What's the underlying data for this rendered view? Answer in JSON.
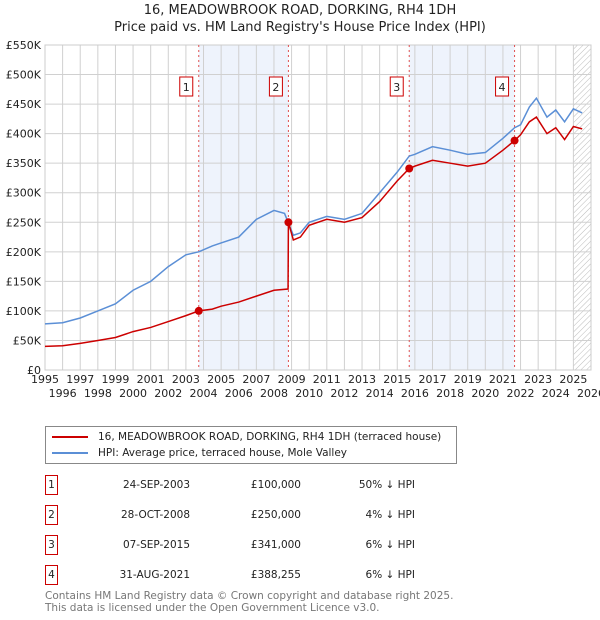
{
  "chart_data": {
    "type": "line",
    "title": "16, MEADOWBROOK ROAD, DORKING, RH4 1DH",
    "subtitle": "Price paid vs. HM Land Registry's House Price Index (HPI)",
    "xlim": [
      1995,
      2026
    ],
    "ylim": [
      0,
      550000
    ],
    "x_ticks": [
      "1995",
      "1996",
      "1997",
      "1998",
      "1999",
      "2000",
      "2001",
      "2002",
      "2003",
      "2004",
      "2005",
      "2006",
      "2007",
      "2008",
      "2009",
      "2010",
      "2011",
      "2012",
      "2013",
      "2014",
      "2015",
      "2016",
      "2017",
      "2018",
      "2019",
      "2020",
      "2021",
      "2022",
      "2023",
      "2024",
      "2025",
      "2026"
    ],
    "y_ticks": [
      {
        "v": 0,
        "l": "£0"
      },
      {
        "v": 50000,
        "l": "£50K"
      },
      {
        "v": 100000,
        "l": "£100K"
      },
      {
        "v": 150000,
        "l": "£150K"
      },
      {
        "v": 200000,
        "l": "£200K"
      },
      {
        "v": 250000,
        "l": "£250K"
      },
      {
        "v": 300000,
        "l": "£300K"
      },
      {
        "v": 350000,
        "l": "£350K"
      },
      {
        "v": 400000,
        "l": "£400K"
      },
      {
        "v": 450000,
        "l": "£450K"
      },
      {
        "v": 500000,
        "l": "£500K"
      },
      {
        "v": 550000,
        "l": "£550K"
      }
    ],
    "grid": true,
    "series": [
      {
        "name": "16, MEADOWBROOK ROAD, DORKING, RH4 1DH (terraced house)",
        "color": "#cc0000",
        "x": [
          1995,
          1996,
          1997,
          1998,
          1999,
          2000,
          2001,
          2002,
          2003,
          2003.73,
          2004.5,
          2005,
          2006,
          2007,
          2008,
          2008.8,
          2008.82,
          2009.1,
          2009.5,
          2010,
          2011,
          2012,
          2013,
          2014,
          2015,
          2015.68,
          2016,
          2017,
          2018,
          2019,
          2020,
          2021,
          2021.66,
          2022,
          2022.5,
          2022.9,
          2023.5,
          2024,
          2024.5,
          2025,
          2025.5
        ],
        "y": [
          40000,
          41000,
          45000,
          50000,
          55000,
          65000,
          72000,
          82000,
          92000,
          100000,
          103000,
          108000,
          115000,
          125000,
          135000,
          137000,
          250000,
          220000,
          225000,
          245000,
          255000,
          250000,
          258000,
          285000,
          320000,
          341000,
          345000,
          355000,
          350000,
          345000,
          350000,
          372000,
          388255,
          398000,
          420000,
          428000,
          400000,
          410000,
          390000,
          412000,
          408000
        ]
      },
      {
        "name": "HPI: Average price, terraced house, Mole Valley",
        "color": "#5b8fd6",
        "x": [
          1995,
          1996,
          1997,
          1998,
          1999,
          2000,
          2001,
          2002,
          2003,
          2003.73,
          2004.5,
          2005,
          2006,
          2007,
          2008,
          2008.6,
          2009.1,
          2009.5,
          2010,
          2011,
          2012,
          2013,
          2014,
          2015,
          2015.68,
          2016,
          2017,
          2018,
          2019,
          2020,
          2021,
          2021.66,
          2022,
          2022.5,
          2022.9,
          2023.5,
          2024,
          2024.5,
          2025,
          2025.5
        ],
        "y": [
          78000,
          80000,
          88000,
          100000,
          112000,
          135000,
          150000,
          175000,
          195000,
          200000,
          210000,
          215000,
          225000,
          255000,
          270000,
          265000,
          228000,
          232000,
          250000,
          260000,
          255000,
          265000,
          300000,
          335000,
          362000,
          365000,
          378000,
          372000,
          365000,
          368000,
          392000,
          410000,
          415000,
          445000,
          460000,
          428000,
          440000,
          420000,
          442000,
          435000
        ]
      }
    ],
    "sales": [
      {
        "n": "1",
        "x": 2003.73,
        "y": 100000
      },
      {
        "n": "2",
        "x": 2008.82,
        "y": 250000
      },
      {
        "n": "3",
        "x": 2015.68,
        "y": 341000
      },
      {
        "n": "4",
        "x": 2021.66,
        "y": 388255
      }
    ],
    "shaded_ranges": [
      [
        2003.73,
        2008.82
      ],
      [
        2015.68,
        2021.66
      ]
    ],
    "forecast_hatch_from": 2025.0
  },
  "legend": {
    "red": "16, MEADOWBROOK ROAD, DORKING, RH4 1DH (terraced house)",
    "blue": "HPI: Average price, terraced house, Mole Valley"
  },
  "table": [
    {
      "n": "1",
      "date": "24-SEP-2003",
      "price": "£100,000",
      "hpi": "50% ↓ HPI"
    },
    {
      "n": "2",
      "date": "28-OCT-2008",
      "price": "£250,000",
      "hpi": "4% ↓ HPI"
    },
    {
      "n": "3",
      "date": "07-SEP-2015",
      "price": "£341,000",
      "hpi": "6% ↓ HPI"
    },
    {
      "n": "4",
      "date": "31-AUG-2021",
      "price": "£388,255",
      "hpi": "6% ↓ HPI"
    }
  ],
  "footer": {
    "line1": "Contains HM Land Registry data © Crown copyright and database right 2025.",
    "line2": "This data is licensed under the Open Government Licence v3.0."
  }
}
